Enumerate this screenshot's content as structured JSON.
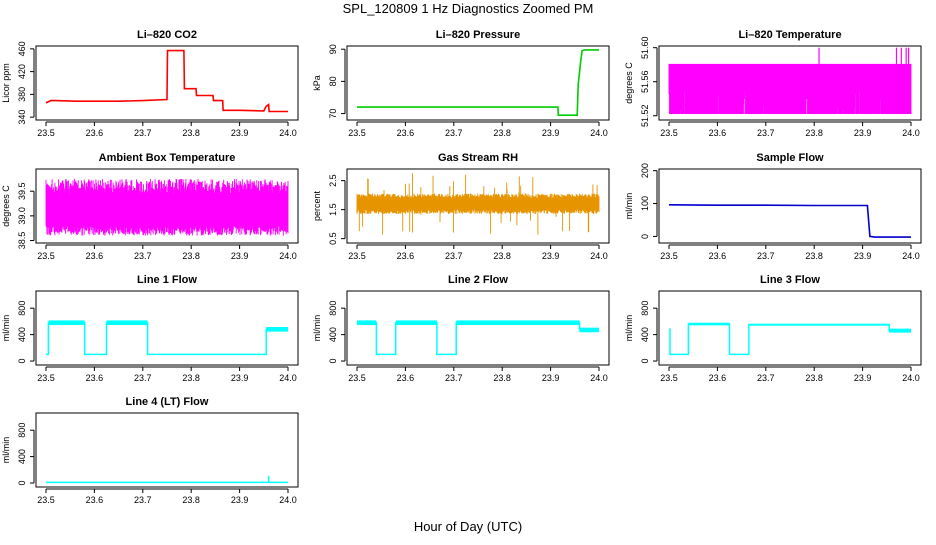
{
  "figure": {
    "title": "SPL_120809  1 Hz Diagnostics Zoomed PM",
    "xlabel": "Hour of Day (UTC)"
  },
  "chart_data": [
    {
      "type": "line",
      "title": "Li–820 CO2",
      "ylabel": "Licor ppm",
      "xlim": [
        23.5,
        24.0
      ],
      "xticks": [
        "23.5",
        "23.6",
        "23.7",
        "23.8",
        "23.9",
        "24.0"
      ],
      "ylim": [
        335,
        465
      ],
      "yticks": [
        340,
        380,
        420,
        460
      ],
      "ytick_labels": [
        "340",
        "380",
        "420",
        "460"
      ],
      "color": "#ff0000",
      "series": [
        {
          "name": "CO2",
          "x": [
            23.5,
            23.51,
            23.52,
            23.56,
            23.6,
            23.65,
            23.7,
            23.75,
            23.751,
            23.785,
            23.786,
            23.81,
            23.811,
            23.845,
            23.846,
            23.865,
            23.866,
            23.9,
            23.95,
            23.955,
            23.96,
            23.961,
            23.97,
            24.0
          ],
          "y": [
            365,
            369,
            369,
            368,
            368,
            368,
            369,
            371,
            457,
            457,
            390,
            390,
            378,
            378,
            369,
            369,
            352,
            352,
            351,
            359,
            362,
            350,
            350,
            350
          ]
        }
      ]
    },
    {
      "type": "line",
      "title": "Li–820 Pressure",
      "ylabel": "kPa",
      "xlim": [
        23.5,
        24.0
      ],
      "xticks": [
        "23.5",
        "23.6",
        "23.7",
        "23.8",
        "23.9",
        "24.0"
      ],
      "ylim": [
        68,
        91
      ],
      "yticks": [
        70,
        80,
        90
      ],
      "ytick_labels": [
        "70",
        "80",
        "90"
      ],
      "color": "#00cc00",
      "series": [
        {
          "name": "Pressure",
          "x": [
            23.5,
            23.6,
            23.7,
            23.8,
            23.9,
            23.915,
            23.916,
            23.955,
            23.957,
            23.962,
            23.965,
            23.97,
            24.0
          ],
          "y": [
            72,
            72,
            72,
            72,
            72,
            72,
            69.5,
            69.5,
            79,
            86,
            89.5,
            89.8,
            89.8
          ]
        }
      ]
    },
    {
      "type": "band",
      "title": "Li–820 Temperature",
      "ylabel": "degrees C",
      "xlim": [
        23.5,
        24.0
      ],
      "xticks": [
        "23.5",
        "23.6",
        "23.7",
        "23.8",
        "23.9",
        "24.0"
      ],
      "ylim": [
        51.515,
        51.602
      ],
      "yticks": [
        51.52,
        51.56,
        51.6
      ],
      "ytick_labels": [
        "51.52",
        "51.56",
        "51.60"
      ],
      "color": "#ff00ff",
      "series": [
        {
          "name": "Temperature",
          "low": 51.522,
          "high": 51.581,
          "x_start": 23.5,
          "x_end": 24.0,
          "spikes_x": [
            23.81,
            23.97,
            23.98,
            23.99,
            23.995
          ],
          "spikes_y": 51.6
        }
      ]
    },
    {
      "type": "band",
      "title": "Ambient Box Temperature",
      "ylabel": "degrees C",
      "xlim": [
        23.5,
        24.0
      ],
      "xticks": [
        "23.5",
        "23.6",
        "23.7",
        "23.8",
        "23.9",
        "24.0"
      ],
      "ylim": [
        38.45,
        39.95
      ],
      "yticks": [
        38.5,
        39.0,
        39.5
      ],
      "ytick_labels": [
        "38.5",
        "39.0",
        "39.5"
      ],
      "color": "#ff00ff",
      "series": [
        {
          "name": "Ambient",
          "low": 38.6,
          "high": 39.75,
          "core_low": 38.8,
          "core_high": 39.45,
          "x_start": 23.5,
          "x_end": 24.0
        }
      ]
    },
    {
      "type": "band",
      "title": "Gas Stream RH",
      "ylabel": "percent",
      "xlim": [
        23.5,
        24.0
      ],
      "xticks": [
        "23.5",
        "23.6",
        "23.7",
        "23.8",
        "23.9",
        "24.0"
      ],
      "ylim": [
        0.35,
        2.9
      ],
      "yticks": [
        0.5,
        1.5,
        2.5
      ],
      "ytick_labels": [
        "0.5",
        "1.5",
        "2.5"
      ],
      "color": "#e69500",
      "series": [
        {
          "name": "RH",
          "low": 1.35,
          "high": 2.05,
          "spike_low": 0.6,
          "spike_high": 2.8,
          "x_start": 23.5,
          "x_end": 24.0
        }
      ]
    },
    {
      "type": "line",
      "title": "Sample Flow",
      "ylabel": "ml/min",
      "xlim": [
        23.5,
        24.0
      ],
      "xticks": [
        "23.5",
        "23.6",
        "23.7",
        "23.8",
        "23.9",
        "24.0"
      ],
      "ylim": [
        -20,
        205
      ],
      "yticks": [
        0,
        100,
        200
      ],
      "ytick_labels": [
        "0",
        "100",
        "200"
      ],
      "color": "#0000cc",
      "series": [
        {
          "name": "Sample",
          "x": [
            23.5,
            23.6,
            23.7,
            23.8,
            23.91,
            23.915,
            23.925,
            24.0
          ],
          "y": [
            96,
            95,
            95,
            94,
            94,
            0,
            -2,
            -2
          ]
        }
      ]
    },
    {
      "type": "step",
      "title": "Line 1 Flow",
      "ylabel": "ml/min",
      "xlim": [
        23.5,
        24.0
      ],
      "xticks": [
        "23.5",
        "23.6",
        "23.7",
        "23.8",
        "23.9",
        "24.0"
      ],
      "ylim": [
        -60,
        1060
      ],
      "yticks": [
        0,
        400,
        800
      ],
      "ytick_labels": [
        "0",
        "400",
        "800"
      ],
      "color": "#00ffff",
      "series": [
        {
          "name": "Line 1",
          "segments": [
            [
              23.5,
              23.505,
              100,
              null
            ],
            [
              23.505,
              23.58,
              580,
              70
            ],
            [
              23.58,
              23.625,
              100,
              null
            ],
            [
              23.625,
              23.71,
              580,
              70
            ],
            [
              23.71,
              23.955,
              100,
              null
            ],
            [
              23.955,
              24.0,
              480,
              70
            ]
          ]
        }
      ]
    },
    {
      "type": "step",
      "title": "Line 2 Flow",
      "ylabel": "ml/min",
      "xlim": [
        23.5,
        24.0
      ],
      "xticks": [
        "23.5",
        "23.6",
        "23.7",
        "23.8",
        "23.9",
        "24.0"
      ],
      "ylim": [
        -60,
        1060
      ],
      "yticks": [
        0,
        400,
        800
      ],
      "ytick_labels": [
        "0",
        "400",
        "800"
      ],
      "color": "#00ffff",
      "series": [
        {
          "name": "Line 2",
          "segments": [
            [
              23.5,
              23.54,
              580,
              70
            ],
            [
              23.54,
              23.58,
              100,
              null
            ],
            [
              23.58,
              23.665,
              580,
              70
            ],
            [
              23.665,
              23.705,
              100,
              null
            ],
            [
              23.705,
              23.96,
              580,
              70
            ],
            [
              23.96,
              24.0,
              470,
              70
            ]
          ]
        }
      ]
    },
    {
      "type": "step",
      "title": "Line 3 Flow",
      "ylabel": "ml/min",
      "xlim": [
        23.5,
        24.0
      ],
      "xticks": [
        "23.5",
        "23.6",
        "23.7",
        "23.8",
        "23.9",
        "24.0"
      ],
      "ylim": [
        -60,
        1060
      ],
      "yticks": [
        0,
        400,
        800
      ],
      "ytick_labels": [
        "0",
        "400",
        "800"
      ],
      "color": "#00ffff",
      "series": [
        {
          "name": "Line 3",
          "segments": [
            [
              23.5,
              23.502,
              480,
              null
            ],
            [
              23.502,
              23.54,
              100,
              null
            ],
            [
              23.54,
              23.625,
              560,
              40
            ],
            [
              23.625,
              23.665,
              100,
              null
            ],
            [
              23.665,
              23.955,
              550,
              30
            ],
            [
              23.955,
              24.0,
              460,
              60
            ]
          ]
        }
      ]
    },
    {
      "type": "step",
      "title": "Line 4 (LT) Flow",
      "ylabel": "ml/min",
      "xlim": [
        23.5,
        24.0
      ],
      "xticks": [
        "23.5",
        "23.6",
        "23.7",
        "23.8",
        "23.9",
        "24.0"
      ],
      "ylim": [
        -60,
        1060
      ],
      "yticks": [
        0,
        400,
        800
      ],
      "ytick_labels": [
        "0",
        "400",
        "800"
      ],
      "color": "#00ffff",
      "series": [
        {
          "name": "Line 4",
          "segments": [
            [
              23.5,
              24.0,
              10,
              null
            ]
          ],
          "spike": [
            23.96,
            110
          ]
        }
      ]
    }
  ]
}
